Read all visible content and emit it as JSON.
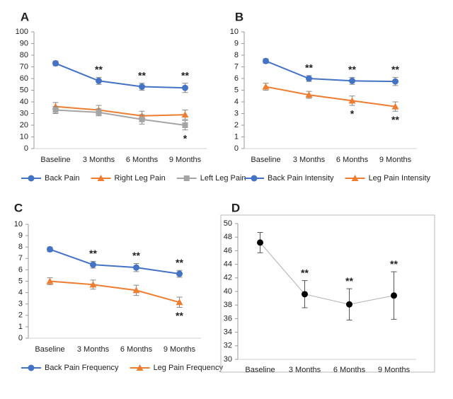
{
  "chart_data": [
    {
      "type": "line",
      "panel": "A",
      "categories": [
        "Baseline",
        "3 Months",
        "6 Months",
        "9 Months"
      ],
      "ylim": [
        0,
        100
      ],
      "yticks": [
        0,
        10,
        20,
        30,
        40,
        50,
        60,
        70,
        80,
        90,
        100
      ],
      "series": [
        {
          "name": "Back Pain",
          "color": "#4472c4",
          "marker": "circle",
          "values": [
            73,
            58,
            53,
            52
          ],
          "errors": [
            2,
            3,
            3,
            4
          ]
        },
        {
          "name": "Right Leg Pain",
          "color": "#ed7d31",
          "marker": "triangle",
          "values": [
            36,
            33,
            28,
            29
          ],
          "errors": [
            3.5,
            4,
            4,
            4
          ]
        },
        {
          "name": "Left Leg Pain",
          "color": "#a5a5a5",
          "marker": "square",
          "values": [
            33,
            31,
            25,
            20
          ],
          "errors": [
            3,
            3,
            4,
            4
          ]
        }
      ],
      "annotations": [
        {
          "text": "**",
          "category": "3 Months",
          "series": "Back Pain",
          "side": "above"
        },
        {
          "text": "**",
          "category": "6 Months",
          "series": "Back Pain",
          "side": "above"
        },
        {
          "text": "**",
          "category": "9 Months",
          "series": "Back Pain",
          "side": "above"
        },
        {
          "text": "*",
          "category": "9 Months",
          "series": "Left Leg Pain",
          "side": "below"
        }
      ]
    },
    {
      "type": "line",
      "panel": "B",
      "categories": [
        "Baseline",
        "3 Months",
        "6 Months",
        "9 Months"
      ],
      "ylim": [
        0,
        10
      ],
      "yticks": [
        0,
        1,
        2,
        3,
        4,
        5,
        6,
        7,
        8,
        9,
        10
      ],
      "series": [
        {
          "name": "Back Pain Intensity",
          "color": "#4472c4",
          "marker": "circle",
          "values": [
            7.5,
            6.0,
            5.8,
            5.75
          ],
          "errors": [
            0.2,
            0.25,
            0.3,
            0.35
          ]
        },
        {
          "name": "Leg Pain Intensity",
          "color": "#ed7d31",
          "marker": "triangle",
          "values": [
            5.3,
            4.6,
            4.1,
            3.6
          ],
          "errors": [
            0.3,
            0.3,
            0.4,
            0.4
          ]
        }
      ],
      "annotations": [
        {
          "text": "**",
          "category": "3 Months",
          "series": "Back Pain Intensity",
          "side": "above"
        },
        {
          "text": "**",
          "category": "6 Months",
          "series": "Back Pain Intensity",
          "side": "above"
        },
        {
          "text": "**",
          "category": "9 Months",
          "series": "Back Pain Intensity",
          "side": "above"
        },
        {
          "text": "*",
          "category": "6 Months",
          "series": "Leg Pain Intensity",
          "side": "below"
        },
        {
          "text": "**",
          "category": "9 Months",
          "series": "Leg Pain Intensity",
          "side": "below"
        }
      ]
    },
    {
      "type": "line",
      "panel": "C",
      "categories": [
        "Baseline",
        "3 Months",
        "6 Months",
        "9 Months"
      ],
      "ylim": [
        0,
        10
      ],
      "yticks": [
        0,
        1,
        2,
        3,
        4,
        5,
        6,
        7,
        8,
        9,
        10
      ],
      "series": [
        {
          "name": "Back Pain Frequency",
          "color": "#4472c4",
          "marker": "circle",
          "values": [
            7.8,
            6.45,
            6.2,
            5.65
          ],
          "errors": [
            0.2,
            0.3,
            0.35,
            0.3
          ]
        },
        {
          "name": "Leg Pain Frequency",
          "color": "#ed7d31",
          "marker": "triangle",
          "values": [
            5.0,
            4.7,
            4.2,
            3.15
          ],
          "errors": [
            0.3,
            0.4,
            0.45,
            0.45
          ]
        }
      ],
      "annotations": [
        {
          "text": "**",
          "category": "3 Months",
          "series": "Back Pain Frequency",
          "side": "above"
        },
        {
          "text": "**",
          "category": "6 Months",
          "series": "Back Pain Frequency",
          "side": "above"
        },
        {
          "text": "**",
          "category": "9 Months",
          "series": "Back Pain Frequency",
          "side": "above"
        },
        {
          "text": "**",
          "category": "9 Months",
          "series": "Leg Pain Frequency",
          "side": "below"
        }
      ]
    },
    {
      "type": "line",
      "panel": "D",
      "categories": [
        "Baseline",
        "3 Months",
        "6 Months",
        "9 Months"
      ],
      "ylim": [
        30,
        50
      ],
      "yticks": [
        30,
        32,
        34,
        36,
        38,
        40,
        42,
        44,
        46,
        48,
        50
      ],
      "frame": true,
      "series": [
        {
          "color": "#000000",
          "line_color": "#b0b0b0",
          "marker": "circle",
          "values": [
            47.2,
            39.6,
            38.1,
            39.4
          ],
          "errors": [
            1.5,
            2.0,
            2.3,
            3.5
          ]
        }
      ],
      "annotations": [
        {
          "text": "**",
          "category": "3 Months",
          "side": "above"
        },
        {
          "text": "**",
          "category": "6 Months",
          "side": "above"
        },
        {
          "text": "**",
          "category": "9 Months",
          "side": "above"
        }
      ]
    }
  ]
}
